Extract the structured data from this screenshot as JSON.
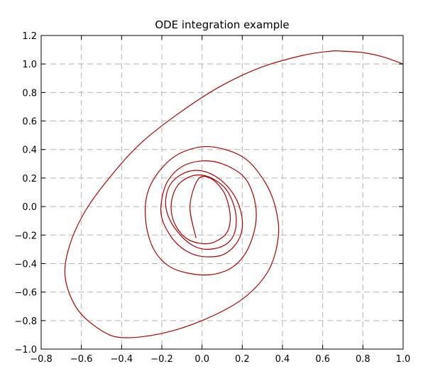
{
  "chart_data": {
    "type": "line",
    "title": "ODE integration example",
    "xlabel": "",
    "ylabel": "",
    "xlim": [
      -0.8,
      1.0
    ],
    "ylim": [
      -1.0,
      1.2
    ],
    "grid": true,
    "x_ticks": [
      -0.8,
      -0.6,
      -0.4,
      -0.2,
      0.0,
      0.2,
      0.4,
      0.6,
      0.8,
      1.0
    ],
    "y_ticks": [
      -1.0,
      -0.8,
      -0.6,
      -0.4,
      -0.2,
      0.0,
      0.2,
      0.4,
      0.6,
      0.8,
      1.0,
      1.2
    ],
    "x_tick_labels": [
      "−0.8",
      "−0.6",
      "−0.4",
      "−0.2",
      "0.0",
      "0.2",
      "0.4",
      "0.6",
      "0.8",
      "1.0"
    ],
    "y_tick_labels": [
      "−1.0",
      "−0.8",
      "−0.6",
      "−0.4",
      "−0.2",
      "0.0",
      "0.2",
      "0.4",
      "0.6",
      "0.8",
      "1.0",
      "1.2"
    ],
    "series": [
      {
        "color": "#b30000",
        "x": [
          1.0,
          0.9,
          0.8,
          0.7,
          0.64,
          0.5,
          0.3,
          0.1,
          -0.1,
          -0.3,
          -0.45,
          -0.58,
          -0.66,
          -0.68,
          -0.62,
          -0.5,
          -0.39,
          -0.2,
          0.0,
          0.2,
          0.33,
          0.38,
          0.36,
          0.3,
          0.2,
          0.04,
          -0.1,
          -0.2,
          -0.27,
          -0.28,
          -0.24,
          -0.15,
          0.0,
          0.12,
          0.2,
          0.25,
          0.27,
          0.25,
          0.2,
          0.1,
          0.0,
          -0.1,
          -0.17,
          -0.2,
          -0.2,
          -0.15,
          -0.08,
          0.0,
          0.1,
          0.17,
          0.2,
          0.19,
          0.15,
          0.08,
          0.0,
          -0.08,
          -0.15,
          -0.18,
          -0.17,
          -0.12,
          -0.05,
          0.02,
          0.1,
          0.15,
          0.17,
          0.16,
          0.12,
          0.06,
          0.0,
          -0.06,
          -0.12,
          -0.15,
          -0.15,
          -0.12,
          -0.07,
          0.0,
          0.06,
          0.12,
          0.14,
          0.13,
          0.1,
          0.04,
          -0.02,
          -0.06,
          -0.03
        ],
        "y": [
          1.0,
          1.05,
          1.08,
          1.09,
          1.09,
          1.06,
          0.98,
          0.85,
          0.67,
          0.45,
          0.22,
          -0.03,
          -0.28,
          -0.5,
          -0.72,
          -0.87,
          -0.92,
          -0.89,
          -0.8,
          -0.65,
          -0.45,
          -0.2,
          0.02,
          0.2,
          0.35,
          0.42,
          0.38,
          0.27,
          0.1,
          -0.1,
          -0.3,
          -0.43,
          -0.48,
          -0.45,
          -0.36,
          -0.22,
          -0.06,
          0.1,
          0.22,
          0.3,
          0.32,
          0.28,
          0.18,
          0.05,
          -0.08,
          -0.22,
          -0.31,
          -0.35,
          -0.34,
          -0.26,
          -0.15,
          -0.02,
          0.1,
          0.2,
          0.25,
          0.24,
          0.17,
          0.06,
          -0.06,
          -0.18,
          -0.27,
          -0.3,
          -0.28,
          -0.22,
          -0.12,
          0.0,
          0.12,
          0.19,
          0.22,
          0.21,
          0.15,
          0.05,
          -0.06,
          -0.16,
          -0.23,
          -0.26,
          -0.25,
          -0.19,
          -0.1,
          0.02,
          0.12,
          0.2,
          0.19,
          0.0,
          -0.22
        ]
      }
    ]
  }
}
